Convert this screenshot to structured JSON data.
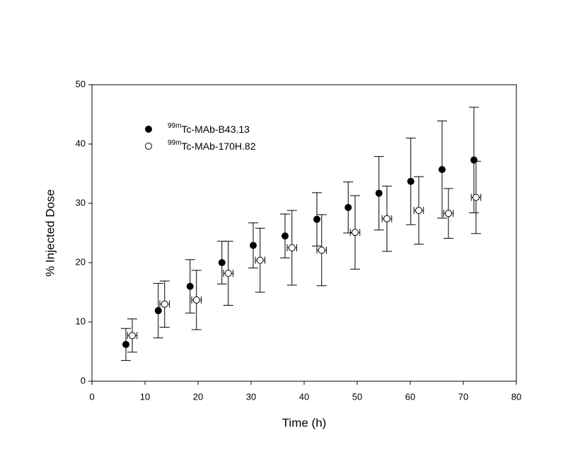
{
  "chart_data": {
    "type": "scatter",
    "xlabel": "Time (h)",
    "ylabel": "% Injected Dose",
    "xlim": [
      0,
      80
    ],
    "xticks": [
      0,
      10,
      20,
      30,
      40,
      50,
      60,
      70,
      80
    ],
    "ylim": [
      0,
      50
    ],
    "yticks": [
      0,
      10,
      20,
      30,
      40,
      50
    ],
    "legend": "upper left",
    "series": [
      {
        "name": "Tc-MAb-B43.13",
        "name_superscript": "99m",
        "color": "#000000",
        "filled": true,
        "x": [
          6.4,
          12.5,
          18.5,
          24.5,
          30.4,
          36.4,
          42.4,
          48.3,
          54.1,
          60.1,
          66.0,
          72.0
        ],
        "values": [
          6.2,
          11.9,
          16.0,
          20.0,
          22.9,
          24.5,
          27.3,
          29.3,
          31.7,
          33.7,
          35.7,
          37.3
        ],
        "errors": [
          2.7,
          4.6,
          4.5,
          3.6,
          3.8,
          3.7,
          4.5,
          4.3,
          6.2,
          7.3,
          8.2,
          8.9
        ]
      },
      {
        "name": "Tc-MAb-170H.82",
        "name_superscript": "99m",
        "color": "#000000",
        "filled": false,
        "x": [
          7.6,
          13.7,
          19.7,
          25.7,
          31.7,
          37.7,
          43.3,
          49.6,
          55.6,
          61.6,
          67.2,
          72.4
        ],
        "values": [
          7.7,
          13.0,
          13.7,
          18.2,
          20.4,
          22.5,
          22.1,
          25.1,
          27.4,
          28.8,
          28.3,
          31.0
        ],
        "errors": [
          2.8,
          3.9,
          5.0,
          5.4,
          5.4,
          6.3,
          6.0,
          6.2,
          5.5,
          5.7,
          4.2,
          6.1
        ],
        "xerr": [
          0.9,
          0.9,
          0.9,
          0.9,
          0.9,
          0.9,
          0.9,
          0.9,
          0.9,
          0.9,
          0.9,
          0.9
        ]
      }
    ]
  }
}
